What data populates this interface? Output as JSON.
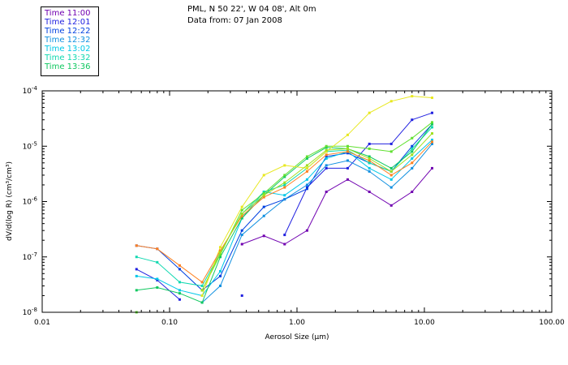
{
  "header": {
    "location": "PML, N 50 22', W 04 08', Alt 0m",
    "data_from": "Data from: 07 Jan 2008"
  },
  "legend": [
    {
      "label": "Time 11:00",
      "color": "#7000b0"
    },
    {
      "label": "Time 12:01",
      "color": "#2020e0"
    },
    {
      "label": "Time 12:22",
      "color": "#0040e0"
    },
    {
      "label": "Time 12:32",
      "color": "#1090e0"
    },
    {
      "label": "Time 13:02",
      "color": "#00c8e8"
    },
    {
      "label": "Time 13:32",
      "color": "#10d8b0"
    },
    {
      "label": "Time 13:36",
      "color": "#10c860"
    }
  ],
  "chart_data": {
    "type": "line",
    "title": "",
    "xlabel": "Aerosol Size (µm)",
    "ylabel": "dV/d(log R) (cm³/cm³)",
    "x_scale": "log",
    "y_scale": "log",
    "xlim": [
      0.01,
      100
    ],
    "ylim": [
      1e-08,
      0.0001
    ],
    "x_ticks": [
      "0.01",
      "0.10",
      "1.00",
      "10.00",
      "100.00"
    ],
    "y_ticks": [
      {
        "base": "10",
        "exp": "-4"
      },
      {
        "base": "10",
        "exp": "-5"
      },
      {
        "base": "10",
        "exp": "-6"
      },
      {
        "base": "10",
        "exp": "-7"
      },
      {
        "base": "10",
        "exp": "-8"
      }
    ],
    "x": [
      0.055,
      0.08,
      0.12,
      0.18,
      0.25,
      0.37,
      0.55,
      0.8,
      1.2,
      1.7,
      2.5,
      3.7,
      5.5,
      8,
      11.5
    ],
    "series": [
      {
        "color": "#7000b0",
        "values": [
          null,
          null,
          null,
          null,
          null,
          1.7e-07,
          2.4e-07,
          1.7e-07,
          3e-07,
          1.5e-06,
          2.5e-06,
          1.5e-06,
          8.5e-07,
          1.5e-06,
          4e-06
        ]
      },
      {
        "color": "#2020e0",
        "values": [
          6e-08,
          3.8e-08,
          1.7e-08,
          null,
          null,
          2e-08,
          null,
          2.5e-07,
          1.8e-06,
          4e-06,
          4e-06,
          1.1e-05,
          1.1e-05,
          3e-05,
          4e-05
        ]
      },
      {
        "color": "#0040e0",
        "values": [
          1.6e-07,
          1.4e-07,
          6e-08,
          2.5e-08,
          4.5e-08,
          3e-07,
          8e-07,
          1.1e-06,
          1.7e-06,
          6.5e-06,
          7.5e-06,
          5e-06,
          3.5e-06,
          1e-05,
          2.5e-05
        ]
      },
      {
        "color": "#1090e0",
        "values": [
          null,
          null,
          null,
          1.5e-08,
          3e-08,
          2.5e-07,
          5.5e-07,
          1.1e-06,
          2e-06,
          4.5e-06,
          5.5e-06,
          3.5e-06,
          1.8e-06,
          4e-06,
          1.1e-05
        ]
      },
      {
        "color": "#00c8e8",
        "values": [
          4.5e-08,
          4e-08,
          2.5e-08,
          2e-08,
          5.5e-08,
          5e-07,
          1.5e-06,
          1.3e-06,
          2.5e-06,
          6e-06,
          8e-06,
          4e-06,
          2.5e-06,
          6e-06,
          1.3e-05
        ]
      },
      {
        "color": "#10d8b0",
        "values": [
          1e-07,
          8e-08,
          3.5e-08,
          3e-08,
          1.2e-07,
          6e-07,
          1.5e-06,
          2e-06,
          4e-06,
          8e-06,
          8.5e-06,
          5e-06,
          3.5e-06,
          9e-06,
          2.2e-05
        ]
      },
      {
        "color": "#10c860",
        "values": [
          2.5e-08,
          2.8e-08,
          2.2e-08,
          1.5e-08,
          1e-07,
          5e-07,
          1.3e-06,
          2.8e-06,
          6e-06,
          9.5e-06,
          9e-06,
          6.5e-06,
          4e-06,
          8e-06,
          2.5e-05
        ]
      },
      {
        "color": "#60e030",
        "values": [
          1e-08,
          null,
          null,
          2.5e-08,
          1.1e-07,
          7e-07,
          1.4e-06,
          3e-06,
          6.5e-06,
          1e-05,
          1e-05,
          9e-06,
          8e-06,
          1.4e-05,
          2.7e-05
        ]
      },
      {
        "color": "#e8e820",
        "values": [
          null,
          null,
          null,
          2e-08,
          1.5e-07,
          8e-07,
          3e-06,
          4.5e-06,
          4e-06,
          8e-06,
          1.6e-05,
          4e-05,
          6.5e-05,
          8e-05,
          7.5e-05
        ]
      },
      {
        "color": "#ff8020",
        "values": [
          1.6e-07,
          1.4e-07,
          7e-08,
          3.5e-08,
          1.3e-07,
          5.5e-07,
          1.2e-06,
          1.8e-06,
          3.5e-06,
          7e-06,
          8e-06,
          5.5e-06,
          3e-06,
          5e-06,
          1.2e-05
        ]
      },
      {
        "color": "#a0e020",
        "values": [
          null,
          null,
          null,
          2.5e-08,
          1.2e-07,
          6e-07,
          1.3e-06,
          2.2e-06,
          4.5e-06,
          8.5e-06,
          9e-06,
          6e-06,
          3.5e-06,
          7e-06,
          1.7e-05
        ]
      }
    ]
  }
}
